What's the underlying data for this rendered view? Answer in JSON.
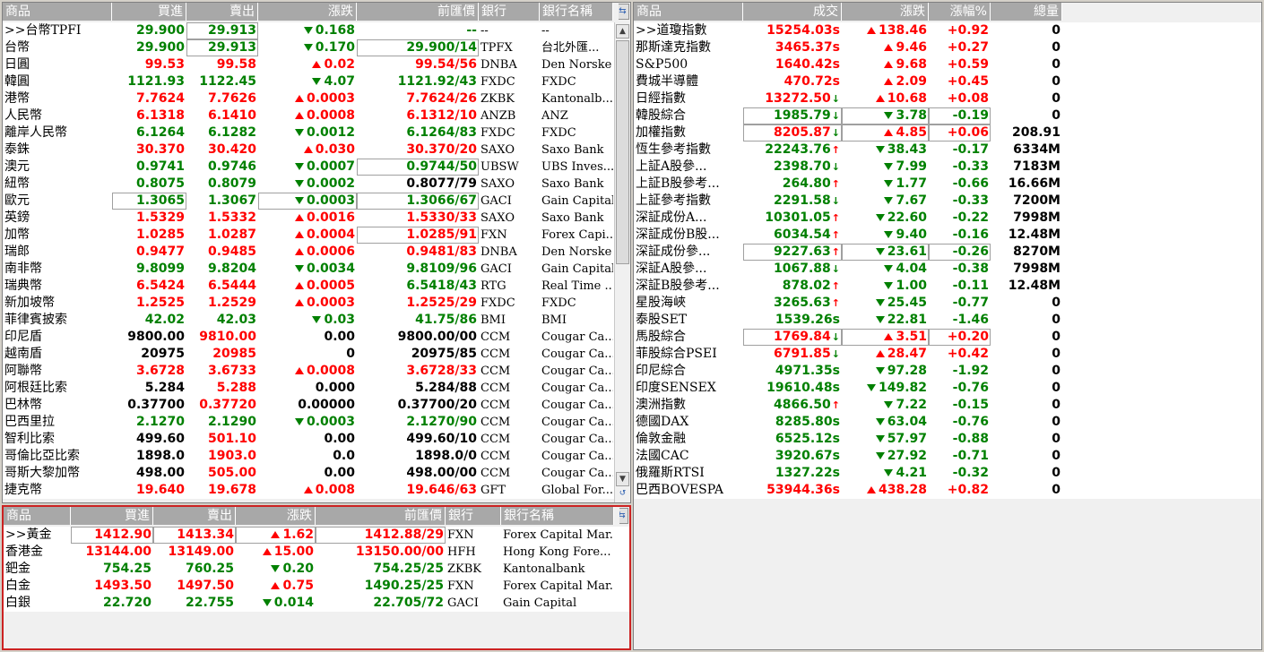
{
  "fx": {
    "headers": [
      "商品",
      "買進",
      "賣出",
      "漲跌",
      "前匯價",
      "銀行",
      "銀行名稱"
    ],
    "rows": [
      {
        "name": ">>台幣TPFI",
        "bid": "29.900",
        "ask": "29.913",
        "chg": "0.168",
        "prev": "--",
        "code": "--",
        "bank": "--",
        "color": "grn",
        "dir": "down",
        "ask_box": true
      },
      {
        "name": "台幣",
        "bid": "29.900",
        "ask": "29.913",
        "chg": "0.170",
        "prev": "29.900/14",
        "code": "TPFX",
        "bank": "台北外匯...",
        "color": "grn",
        "dir": "down",
        "ask_box": true,
        "prev_box": true
      },
      {
        "name": "日圓",
        "bid": "99.53",
        "ask": "99.58",
        "chg": "0.02",
        "prev": "99.54/56",
        "code": "DNBA",
        "bank": "Den Norske",
        "color": "red",
        "dir": "up"
      },
      {
        "name": "韓圓",
        "bid": "1121.93",
        "ask": "1122.45",
        "chg": "4.07",
        "prev": "1121.92/43",
        "code": "FXDC",
        "bank": "FXDC",
        "color": "grn",
        "dir": "down"
      },
      {
        "name": "港幣",
        "bid": "7.7624",
        "ask": "7.7626",
        "chg": "0.0003",
        "prev": "7.7624/26",
        "code": "ZKBK",
        "bank": "Kantonalb...",
        "color": "red",
        "dir": "up"
      },
      {
        "name": "人民幣",
        "bid": "6.1318",
        "ask": "6.1410",
        "chg": "0.0008",
        "prev": "6.1312/10",
        "code": "ANZB",
        "bank": "ANZ",
        "color": "red",
        "dir": "up"
      },
      {
        "name": "離岸人民幣",
        "bid": "6.1264",
        "ask": "6.1282",
        "chg": "0.0012",
        "prev": "6.1264/83",
        "code": "FXDC",
        "bank": "FXDC",
        "color": "grn",
        "dir": "down"
      },
      {
        "name": "泰銖",
        "bid": "30.370",
        "ask": "30.420",
        "chg": "0.030",
        "prev": "30.370/20",
        "code": "SAXO",
        "bank": "Saxo Bank",
        "color": "red",
        "dir": "up"
      },
      {
        "name": "澳元",
        "bid": "0.9741",
        "ask": "0.9746",
        "chg": "0.0007",
        "prev": "0.9744/50",
        "code": "UBSW",
        "bank": "UBS Inves...",
        "color": "grn",
        "dir": "down",
        "prev_box": true
      },
      {
        "name": "紐幣",
        "bid": "0.8075",
        "ask": "0.8079",
        "chg": "0.0002",
        "prev": "0.8077/79",
        "code": "SAXO",
        "bank": "Saxo Bank",
        "color": "grn",
        "dir": "down",
        "prev_color": "blk"
      },
      {
        "name": "歐元",
        "bid": "1.3065",
        "ask": "1.3067",
        "chg": "0.0003",
        "prev": "1.3066/67",
        "code": "GACI",
        "bank": "Gain Capital",
        "color": "grn",
        "dir": "down",
        "bid_box": true,
        "chg_box": true,
        "prev_box": true
      },
      {
        "name": "英鎊",
        "bid": "1.5329",
        "ask": "1.5332",
        "chg": "0.0016",
        "prev": "1.5330/33",
        "code": "SAXO",
        "bank": "Saxo Bank",
        "color": "red",
        "dir": "up"
      },
      {
        "name": "加幣",
        "bid": "1.0285",
        "ask": "1.0287",
        "chg": "0.0004",
        "prev": "1.0285/91",
        "code": "FXN",
        "bank": "Forex Capi...",
        "color": "red",
        "dir": "up",
        "prev_box": true
      },
      {
        "name": "瑞郎",
        "bid": "0.9477",
        "ask": "0.9485",
        "chg": "0.0006",
        "prev": "0.9481/83",
        "code": "DNBA",
        "bank": "Den Norske",
        "color": "red",
        "dir": "up"
      },
      {
        "name": "南非幣",
        "bid": "9.8099",
        "ask": "9.8204",
        "chg": "0.0034",
        "prev": "9.8109/96",
        "code": "GACI",
        "bank": "Gain Capital",
        "color": "grn",
        "dir": "down"
      },
      {
        "name": "瑞典幣",
        "bid": "6.5424",
        "ask": "6.5444",
        "chg": "0.0005",
        "prev": "6.5418/43",
        "code": "RTG",
        "bank": "Real Time ...",
        "color": "red",
        "dir": "up",
        "prev_color": "grn"
      },
      {
        "name": "新加坡幣",
        "bid": "1.2525",
        "ask": "1.2529",
        "chg": "0.0003",
        "prev": "1.2525/29",
        "code": "FXDC",
        "bank": "FXDC",
        "color": "red",
        "dir": "up"
      },
      {
        "name": "菲律賓披索",
        "bid": "42.02",
        "ask": "42.03",
        "chg": "0.03",
        "prev": "41.75/86",
        "code": "BMI",
        "bank": "BMI",
        "color": "grn",
        "dir": "down"
      },
      {
        "name": "印尼盾",
        "bid": "9800.00",
        "ask": "9810.00",
        "chg": "0.00",
        "prev": "9800.00/00",
        "code": "CCM",
        "bank": "Cougar Ca...",
        "color": "blk",
        "dir": "none",
        "ask_color": "red"
      },
      {
        "name": "越南盾",
        "bid": "20975",
        "ask": "20985",
        "chg": "0",
        "prev": "20975/85",
        "code": "CCM",
        "bank": "Cougar Ca...",
        "color": "blk",
        "dir": "none",
        "ask_color": "red"
      },
      {
        "name": "阿聯幣",
        "bid": "3.6728",
        "ask": "3.6733",
        "chg": "0.0008",
        "prev": "3.6728/33",
        "code": "CCM",
        "bank": "Cougar Ca...",
        "color": "red",
        "dir": "up"
      },
      {
        "name": "阿根廷比索",
        "bid": "5.284",
        "ask": "5.288",
        "chg": "0.000",
        "prev": "5.284/88",
        "code": "CCM",
        "bank": "Cougar Ca...",
        "color": "blk",
        "dir": "none",
        "ask_color": "red"
      },
      {
        "name": "巴林幣",
        "bid": "0.37700",
        "ask": "0.37720",
        "chg": "0.00000",
        "prev": "0.37700/20",
        "code": "CCM",
        "bank": "Cougar Ca...",
        "color": "blk",
        "dir": "none",
        "ask_color": "red"
      },
      {
        "name": "巴西里拉",
        "bid": "2.1270",
        "ask": "2.1290",
        "chg": "0.0003",
        "prev": "2.1270/90",
        "code": "CCM",
        "bank": "Cougar Ca...",
        "color": "grn",
        "dir": "down"
      },
      {
        "name": "智利比索",
        "bid": "499.60",
        "ask": "501.10",
        "chg": "0.00",
        "prev": "499.60/10",
        "code": "CCM",
        "bank": "Cougar Ca...",
        "color": "blk",
        "dir": "none",
        "ask_color": "red"
      },
      {
        "name": "哥倫比亞比索",
        "bid": "1898.0",
        "ask": "1903.0",
        "chg": "0.0",
        "prev": "1898.0/0",
        "code": "CCM",
        "bank": "Cougar Ca...",
        "color": "blk",
        "dir": "none",
        "ask_color": "red"
      },
      {
        "name": "哥斯大黎加幣",
        "bid": "498.00",
        "ask": "505.00",
        "chg": "0.00",
        "prev": "498.00/00",
        "code": "CCM",
        "bank": "Cougar Ca...",
        "color": "blk",
        "dir": "none",
        "ask_color": "red"
      },
      {
        "name": "捷克幣",
        "bid": "19.640",
        "ask": "19.678",
        "chg": "0.008",
        "prev": "19.646/63",
        "code": "GFT",
        "bank": "Global For...",
        "color": "red",
        "dir": "up"
      }
    ]
  },
  "metal": {
    "headers": [
      "商品",
      "買進",
      "賣出",
      "漲跌",
      "前匯價",
      "銀行",
      "銀行名稱"
    ],
    "rows": [
      {
        "name": ">>黃金",
        "bid": "1412.90",
        "ask": "1413.34",
        "chg": "1.62",
        "prev": "1412.88/29",
        "code": "FXN",
        "bank": "Forex Capital Mar...",
        "color": "red",
        "dir": "up",
        "bid_box": true,
        "ask_box": true,
        "chg_box": true,
        "prev_box": true
      },
      {
        "name": "香港金",
        "bid": "13144.00",
        "ask": "13149.00",
        "chg": "15.00",
        "prev": "13150.00/00",
        "code": "HFH",
        "bank": "Hong Kong Fore...",
        "color": "red",
        "dir": "up"
      },
      {
        "name": "鈀金",
        "bid": "754.25",
        "ask": "760.25",
        "chg": "0.20",
        "prev": "754.25/25",
        "code": "ZKBK",
        "bank": "Kantonalbank",
        "color": "grn",
        "dir": "down"
      },
      {
        "name": "白金",
        "bid": "1493.50",
        "ask": "1497.50",
        "chg": "0.75",
        "prev": "1490.25/25",
        "code": "FXN",
        "bank": "Forex Capital Mar...",
        "color": "red",
        "dir": "up",
        "prev_color": "grn"
      },
      {
        "name": "白銀",
        "bid": "22.720",
        "ask": "22.755",
        "chg": "0.014",
        "prev": "22.705/72",
        "code": "GACI",
        "bank": "Gain Capital",
        "color": "grn",
        "dir": "down"
      }
    ]
  },
  "idx": {
    "headers": [
      "商品",
      "成交",
      "漲跌",
      "漲幅%",
      "總量"
    ],
    "rows": [
      {
        "name": ">>道瓊指數",
        "last": "15254.03s",
        "chg": "138.46",
        "pct": "+0.92",
        "vol": "0",
        "color": "red",
        "dir": "up",
        "tick": ""
      },
      {
        "name": "那斯達克指數",
        "last": "3465.37s",
        "chg": "9.46",
        "pct": "+0.27",
        "vol": "0",
        "color": "red",
        "dir": "up",
        "tick": ""
      },
      {
        "name": "S&P500",
        "last": "1640.42s",
        "chg": "9.68",
        "pct": "+0.59",
        "vol": "0",
        "color": "red",
        "dir": "up",
        "tick": ""
      },
      {
        "name": "費城半導體",
        "last": "470.72s",
        "chg": "2.09",
        "pct": "+0.45",
        "vol": "0",
        "color": "red",
        "dir": "up",
        "tick": ""
      },
      {
        "name": "日經指數",
        "last": "13272.50",
        "chg": "10.68",
        "pct": "+0.08",
        "vol": "0",
        "color": "red",
        "dir": "up",
        "tick": "down"
      },
      {
        "name": "韓股綜合",
        "last": "1985.79",
        "chg": "3.78",
        "pct": "-0.19",
        "vol": "0",
        "color": "grn",
        "dir": "down",
        "tick": "down",
        "box": true
      },
      {
        "name": "加權指數",
        "last": "8205.87",
        "chg": "4.85",
        "pct": "+0.06",
        "vol": "208.91",
        "color": "red",
        "dir": "up",
        "tick": "down",
        "box": true
      },
      {
        "name": "恆生參考指數",
        "last": "22243.76",
        "chg": "38.43",
        "pct": "-0.17",
        "vol": "6334M",
        "color": "grn",
        "dir": "down",
        "tick": "up"
      },
      {
        "name": "上証A股參...",
        "last": "2398.70",
        "chg": "7.99",
        "pct": "-0.33",
        "vol": "7183M",
        "color": "grn",
        "dir": "down",
        "tick": "down"
      },
      {
        "name": "上証B股參考...",
        "last": "264.80",
        "chg": "1.77",
        "pct": "-0.66",
        "vol": "16.66M",
        "color": "grn",
        "dir": "down",
        "tick": "up"
      },
      {
        "name": "上証參考指數",
        "last": "2291.58",
        "chg": "7.67",
        "pct": "-0.33",
        "vol": "7200M",
        "color": "grn",
        "dir": "down",
        "tick": "down"
      },
      {
        "name": "深証成份A...",
        "last": "10301.05",
        "chg": "22.60",
        "pct": "-0.22",
        "vol": "7998M",
        "color": "grn",
        "dir": "down",
        "tick": "up"
      },
      {
        "name": "深証成份B股...",
        "last": "6034.54",
        "chg": "9.40",
        "pct": "-0.16",
        "vol": "12.48M",
        "color": "grn",
        "dir": "down",
        "tick": "up"
      },
      {
        "name": "深証成份參...",
        "last": "9227.63",
        "chg": "23.61",
        "pct": "-0.26",
        "vol": "8270M",
        "color": "grn",
        "dir": "down",
        "tick": "up",
        "box": true
      },
      {
        "name": "深証A股參...",
        "last": "1067.88",
        "chg": "4.04",
        "pct": "-0.38",
        "vol": "7998M",
        "color": "grn",
        "dir": "down",
        "tick": "down"
      },
      {
        "name": "深証B股參考...",
        "last": "878.02",
        "chg": "1.00",
        "pct": "-0.11",
        "vol": "12.48M",
        "color": "grn",
        "dir": "down",
        "tick": "up"
      },
      {
        "name": "星股海峽",
        "last": "3265.63",
        "chg": "25.45",
        "pct": "-0.77",
        "vol": "0",
        "color": "grn",
        "dir": "down",
        "tick": "up"
      },
      {
        "name": "泰股SET",
        "last": "1539.26s",
        "chg": "22.81",
        "pct": "-1.46",
        "vol": "0",
        "color": "grn",
        "dir": "down",
        "tick": ""
      },
      {
        "name": "馬股綜合",
        "last": "1769.84",
        "chg": "3.51",
        "pct": "+0.20",
        "vol": "0",
        "color": "red",
        "dir": "up",
        "tick": "down",
        "box": true
      },
      {
        "name": "菲股綜合PSEI",
        "last": "6791.85",
        "chg": "28.47",
        "pct": "+0.42",
        "vol": "0",
        "color": "red",
        "dir": "up",
        "tick": "down"
      },
      {
        "name": "印尼綜合",
        "last": "4971.35s",
        "chg": "97.28",
        "pct": "-1.92",
        "vol": "0",
        "color": "grn",
        "dir": "down",
        "tick": ""
      },
      {
        "name": "印度SENSEX",
        "last": "19610.48s",
        "chg": "149.82",
        "pct": "-0.76",
        "vol": "0",
        "color": "grn",
        "dir": "down",
        "tick": ""
      },
      {
        "name": "澳洲指數",
        "last": "4866.50",
        "chg": "7.22",
        "pct": "-0.15",
        "vol": "0",
        "color": "grn",
        "dir": "down",
        "tick": "up"
      },
      {
        "name": "德國DAX",
        "last": "8285.80s",
        "chg": "63.04",
        "pct": "-0.76",
        "vol": "0",
        "color": "grn",
        "dir": "down",
        "tick": ""
      },
      {
        "name": "倫敦金融",
        "last": "6525.12s",
        "chg": "57.97",
        "pct": "-0.88",
        "vol": "0",
        "color": "grn",
        "dir": "down",
        "tick": ""
      },
      {
        "name": "法國CAC",
        "last": "3920.67s",
        "chg": "27.92",
        "pct": "-0.71",
        "vol": "0",
        "color": "grn",
        "dir": "down",
        "tick": ""
      },
      {
        "name": "俄羅斯RTSI",
        "last": "1327.22s",
        "chg": "4.21",
        "pct": "-0.32",
        "vol": "0",
        "color": "grn",
        "dir": "down",
        "tick": ""
      },
      {
        "name": "巴西BOVESPA",
        "last": "53944.36s",
        "chg": "438.28",
        "pct": "+0.82",
        "vol": "0",
        "color": "red",
        "dir": "up",
        "tick": ""
      }
    ]
  },
  "colors": {
    "up": "#ff0000",
    "down": "#008000",
    "header_bg": "#a8a8a8",
    "header_text": "#ffffff",
    "active_border": "#cc2222"
  }
}
